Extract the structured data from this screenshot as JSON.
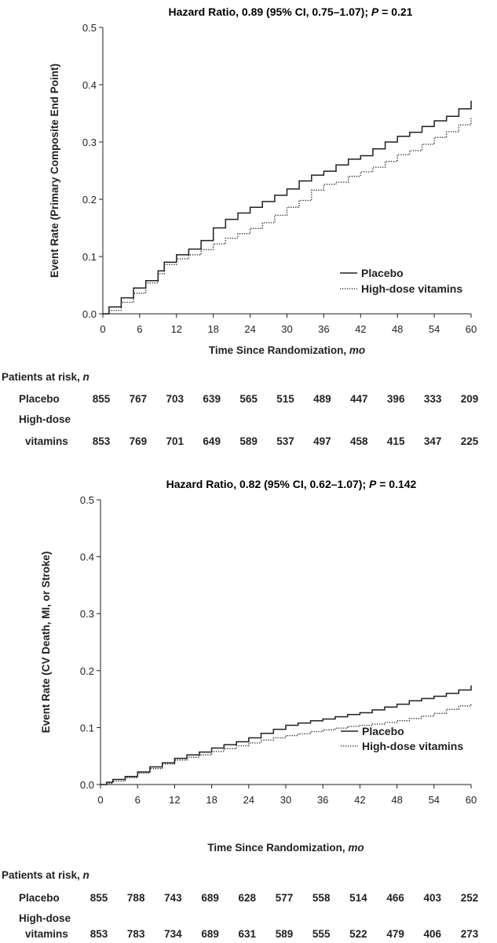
{
  "chart_data": [
    {
      "type": "line",
      "title": "Hazard Ratio, 0.89 (95% CI, 0.75–1.07); P = 0.21",
      "title_parts": {
        "pre": "Hazard Ratio, 0.89 (95% CI, 0.75–1.07); ",
        "p": "P",
        "post": " = 0.21"
      },
      "xlabel": "Time Since Randomization, mo",
      "xlabel_parts": {
        "text": "Time Since Randomization, ",
        "unit": "mo"
      },
      "ylabel": "Event Rate (Primary Composite End Point)",
      "xlim": [
        0,
        60
      ],
      "ylim": [
        0,
        0.5
      ],
      "x_ticks": [
        "0",
        "6",
        "12",
        "18",
        "24",
        "30",
        "36",
        "42",
        "48",
        "54",
        "60"
      ],
      "y_ticks": [
        "0.0",
        "0.1",
        "0.2",
        "0.3",
        "0.4",
        "0.5"
      ],
      "legend_position": "bottom-right",
      "series": [
        {
          "name": "Placebo",
          "style": "solid",
          "x": [
            0,
            1,
            3,
            5,
            7,
            9,
            10,
            12,
            14,
            16,
            18,
            20,
            22,
            24,
            26,
            28,
            30,
            32,
            34,
            36,
            38,
            40,
            42,
            44,
            46,
            48,
            50,
            52,
            54,
            56,
            58,
            60
          ],
          "y": [
            0,
            0.012,
            0.028,
            0.045,
            0.058,
            0.075,
            0.09,
            0.103,
            0.113,
            0.128,
            0.15,
            0.165,
            0.176,
            0.186,
            0.196,
            0.207,
            0.218,
            0.232,
            0.242,
            0.249,
            0.26,
            0.27,
            0.276,
            0.288,
            0.3,
            0.31,
            0.317,
            0.327,
            0.337,
            0.345,
            0.358,
            0.372
          ]
        },
        {
          "name": "High-dose vitamins",
          "style": "dotted",
          "x": [
            0,
            1,
            3,
            5,
            7,
            9,
            10,
            12,
            14,
            16,
            18,
            20,
            22,
            24,
            26,
            28,
            30,
            32,
            34,
            36,
            38,
            40,
            42,
            44,
            46,
            48,
            50,
            52,
            54,
            56,
            58,
            60
          ],
          "y": [
            0,
            0.006,
            0.02,
            0.036,
            0.054,
            0.07,
            0.086,
            0.096,
            0.103,
            0.112,
            0.122,
            0.132,
            0.14,
            0.149,
            0.159,
            0.172,
            0.186,
            0.198,
            0.216,
            0.226,
            0.23,
            0.24,
            0.248,
            0.256,
            0.266,
            0.278,
            0.285,
            0.296,
            0.308,
            0.318,
            0.33,
            0.344
          ]
        }
      ],
      "risk_table": {
        "title": "Patients at risk, n",
        "title_parts": {
          "text": "Patients at risk, ",
          "n": "n"
        },
        "rows": [
          {
            "label": [
              "Placebo"
            ],
            "values": [
              "855",
              "767",
              "703",
              "639",
              "565",
              "515",
              "489",
              "447",
              "396",
              "333",
              "209"
            ]
          },
          {
            "label": [
              "High-dose",
              "vitamins"
            ],
            "values": [
              "853",
              "769",
              "701",
              "649",
              "589",
              "537",
              "497",
              "458",
              "415",
              "347",
              "225"
            ]
          }
        ]
      }
    },
    {
      "type": "line",
      "title": "Hazard Ratio, 0.82 (95% CI, 0.62–1.07); P = 0.142",
      "title_parts": {
        "pre": "Hazard Ratio, 0.82 (95% CI, 0.62–1.07); ",
        "p": "P",
        "post": " = 0.142"
      },
      "xlabel": "Time Since Randomization, mo",
      "xlabel_parts": {
        "text": "Time Since Randomization, ",
        "unit": "mo"
      },
      "ylabel": "Event Rate (CV Death, MI, or Stroke)",
      "xlim": [
        0,
        60
      ],
      "ylim": [
        0,
        0.5
      ],
      "x_ticks": [
        "0",
        "6",
        "12",
        "18",
        "24",
        "30",
        "36",
        "42",
        "48",
        "54",
        "60"
      ],
      "y_ticks": [
        "0.0",
        "0.1",
        "0.2",
        "0.3",
        "0.4",
        "0.5"
      ],
      "legend_position": "bottom-right",
      "series": [
        {
          "name": "Placebo",
          "style": "solid",
          "x": [
            0,
            1,
            2,
            4,
            6,
            8,
            10,
            12,
            14,
            16,
            18,
            20,
            22,
            24,
            26,
            28,
            30,
            32,
            34,
            36,
            38,
            40,
            42,
            44,
            46,
            48,
            50,
            52,
            54,
            56,
            58,
            60
          ],
          "y": [
            0,
            0.004,
            0.009,
            0.014,
            0.022,
            0.031,
            0.038,
            0.046,
            0.052,
            0.057,
            0.064,
            0.07,
            0.075,
            0.082,
            0.09,
            0.097,
            0.104,
            0.108,
            0.112,
            0.115,
            0.119,
            0.123,
            0.126,
            0.131,
            0.136,
            0.141,
            0.147,
            0.151,
            0.155,
            0.16,
            0.166,
            0.174
          ]
        },
        {
          "name": "High-dose vitamins",
          "style": "dotted",
          "x": [
            0,
            1,
            2,
            4,
            6,
            8,
            10,
            12,
            14,
            16,
            18,
            20,
            22,
            24,
            26,
            28,
            30,
            32,
            34,
            36,
            38,
            40,
            42,
            44,
            46,
            48,
            50,
            52,
            54,
            56,
            58,
            60
          ],
          "y": [
            0,
            0.002,
            0.006,
            0.012,
            0.02,
            0.028,
            0.036,
            0.043,
            0.048,
            0.052,
            0.058,
            0.063,
            0.068,
            0.073,
            0.078,
            0.082,
            0.086,
            0.089,
            0.093,
            0.096,
            0.099,
            0.102,
            0.104,
            0.106,
            0.109,
            0.112,
            0.116,
            0.12,
            0.125,
            0.132,
            0.138,
            0.142
          ]
        }
      ],
      "risk_table": {
        "title": "Patients at risk, n",
        "title_parts": {
          "text": "Patients at risk, ",
          "n": "n"
        },
        "rows": [
          {
            "label": [
              "Placebo"
            ],
            "values": [
              "855",
              "788",
              "743",
              "689",
              "628",
              "577",
              "558",
              "514",
              "466",
              "403",
              "252"
            ]
          },
          {
            "label": [
              "High-dose",
              "vitamins"
            ],
            "values": [
              "853",
              "783",
              "734",
              "689",
              "631",
              "589",
              "555",
              "522",
              "479",
              "406",
              "273"
            ]
          }
        ]
      }
    }
  ]
}
